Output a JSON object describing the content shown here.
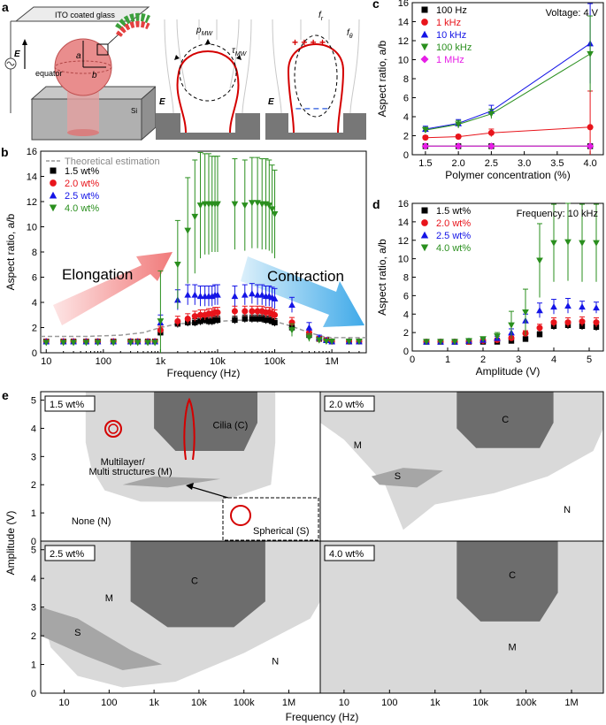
{
  "panel_a": {
    "letter": "a",
    "labels": {
      "ito": "ITO coated glass",
      "efield": "E",
      "equator": "equator",
      "a": "a",
      "b": "b",
      "si": "Si",
      "p_mw": "p",
      "p_mw_sub": "MW",
      "tau_mw": "τ",
      "tau_mw_sub": "MW",
      "f_r": "f",
      "f_r_sub": "r",
      "f_theta": "f",
      "f_theta_sub": "θ",
      "e2": "E",
      "e3": "E"
    }
  },
  "chart_data": [
    {
      "panel": "b",
      "type": "scatter",
      "xscale": "log",
      "xlabel": "Frequency (Hz)",
      "ylabel": "Aspect ratio, a/b",
      "xticks": [
        "10",
        "100",
        "1k",
        "10k",
        "100k",
        "1M"
      ],
      "yticks": [
        0,
        2,
        4,
        6,
        8,
        10,
        12,
        14,
        16
      ],
      "xlim": [
        8,
        4000000
      ],
      "ylim": [
        0,
        16
      ],
      "legend_placement": "top-left",
      "theory_label": "Theoretical estimation",
      "annotations": [
        "Elongation",
        "Contraction"
      ],
      "x": [
        10,
        20,
        30,
        50,
        80,
        150,
        300,
        400,
        600,
        800,
        1000,
        2000,
        3000,
        4000,
        5000,
        6000,
        7000,
        8000,
        9000,
        10000,
        20000,
        30000,
        40000,
        50000,
        60000,
        70000,
        80000,
        90000,
        100000,
        200000,
        400000,
        600000,
        800000,
        1000000,
        2000000,
        3000000
      ],
      "theory": {
        "x": [
          8,
          50,
          200,
          500,
          1000,
          2000,
          5000,
          10000,
          30000,
          100000,
          200000,
          400000,
          700000,
          1000000,
          4000000
        ],
        "y": [
          1.3,
          1.3,
          1.4,
          1.6,
          2.0,
          2.3,
          2.4,
          2.5,
          2.6,
          2.5,
          2.1,
          1.6,
          1.3,
          1.2,
          1.2
        ]
      },
      "series": [
        {
          "name": "1.5 wt%",
          "color": "#000000",
          "marker": "square",
          "y": [
            0.9,
            0.9,
            0.9,
            0.9,
            0.9,
            0.9,
            0.9,
            0.9,
            0.9,
            0.9,
            1.6,
            2.3,
            2.4,
            2.4,
            2.5,
            2.6,
            2.5,
            2.5,
            2.6,
            2.6,
            2.6,
            2.7,
            2.7,
            2.7,
            2.7,
            2.6,
            2.6,
            2.5,
            2.4,
            2.0,
            1.4,
            1.1,
            1.0,
            0.9,
            0.9,
            0.9
          ],
          "err": [
            0.1,
            0.1,
            0.1,
            0.1,
            0.1,
            0.1,
            0.1,
            0.1,
            0.1,
            0.1,
            0.3,
            0.3,
            0.3,
            0.3,
            0.3,
            0.3,
            0.3,
            0.3,
            0.3,
            0.3,
            0.3,
            0.3,
            0.3,
            0.3,
            0.3,
            0.3,
            0.3,
            0.3,
            0.3,
            0.3,
            0.2,
            0.1,
            0.1,
            0.1,
            0.1,
            0.1
          ]
        },
        {
          "name": "2.0 wt%",
          "color": "#e8141b",
          "marker": "circle",
          "y": [
            0.9,
            0.9,
            0.9,
            0.9,
            0.9,
            0.9,
            0.9,
            0.9,
            0.9,
            0.9,
            1.8,
            2.5,
            2.7,
            2.9,
            3.0,
            3.0,
            3.1,
            3.1,
            3.2,
            3.2,
            3.3,
            3.3,
            3.3,
            3.3,
            3.3,
            3.2,
            3.2,
            3.1,
            3.0,
            2.4,
            1.6,
            1.1,
            1.0,
            0.9,
            0.9,
            0.9
          ],
          "err": [
            0.1,
            0.1,
            0.1,
            0.1,
            0.1,
            0.1,
            0.1,
            0.1,
            0.1,
            0.1,
            0.3,
            0.4,
            0.4,
            0.4,
            0.4,
            0.4,
            0.4,
            0.4,
            0.4,
            0.4,
            0.4,
            0.4,
            0.4,
            0.4,
            0.4,
            0.4,
            0.4,
            0.4,
            0.4,
            0.4,
            0.3,
            0.2,
            0.1,
            0.1,
            0.1,
            0.1
          ]
        },
        {
          "name": "2.5 wt%",
          "color": "#1414e6",
          "marker": "triangle-up",
          "y": [
            0.9,
            0.9,
            0.9,
            0.9,
            0.9,
            0.9,
            0.9,
            0.9,
            0.9,
            0.9,
            2.4,
            4.2,
            4.6,
            4.6,
            4.5,
            4.5,
            4.5,
            4.5,
            4.6,
            4.6,
            4.5,
            4.6,
            4.7,
            4.6,
            4.6,
            4.5,
            4.5,
            4.4,
            4.3,
            3.8,
            2.0,
            1.2,
            1.0,
            0.9,
            0.9,
            0.9
          ],
          "err": [
            0.1,
            0.1,
            0.1,
            0.1,
            0.1,
            0.1,
            0.1,
            0.1,
            0.1,
            0.1,
            0.6,
            0.8,
            0.8,
            0.8,
            0.8,
            0.8,
            0.8,
            0.8,
            0.8,
            0.8,
            0.8,
            0.8,
            0.8,
            0.8,
            0.8,
            0.8,
            0.8,
            0.8,
            0.8,
            0.6,
            0.4,
            0.2,
            0.1,
            0.1,
            0.1,
            0.1
          ]
        },
        {
          "name": "4.0 wt%",
          "color": "#2a8f1e",
          "marker": "triangle-down",
          "y": [
            0.8,
            0.8,
            0.8,
            0.8,
            0.8,
            0.8,
            0.8,
            0.8,
            0.8,
            0.8,
            2.5,
            7.0,
            9.7,
            10.8,
            11.7,
            11.8,
            11.8,
            11.8,
            11.8,
            11.8,
            11.8,
            11.7,
            11.9,
            11.9,
            11.8,
            11.8,
            11.7,
            11.4,
            11.0,
            1.8,
            1.2,
            1.0,
            0.9,
            0.9,
            0.9,
            0.9
          ],
          "err": [
            0.1,
            0.1,
            0.1,
            0.1,
            0.1,
            0.1,
            0.1,
            0.1,
            0.1,
            0.1,
            4.0,
            3.5,
            4.2,
            4.5,
            4.2,
            4.0,
            4.0,
            3.8,
            3.8,
            3.8,
            3.6,
            3.6,
            3.6,
            3.6,
            3.6,
            3.6,
            3.6,
            3.5,
            3.5,
            0.5,
            0.3,
            0.2,
            0.1,
            0.1,
            0.1,
            0.1
          ]
        }
      ]
    },
    {
      "panel": "c",
      "type": "line",
      "xlabel": "Polymer concentration (%)",
      "ylabel": "Aspect ratio, a/b",
      "annotation": "Voltage: 4 V",
      "xlim": [
        1.3,
        4.2
      ],
      "ylim": [
        0,
        16
      ],
      "xticks": [
        "1.5",
        "2.0",
        "2.5",
        "3.0",
        "3.5",
        "4.0"
      ],
      "yticks": [
        0,
        2,
        4,
        6,
        8,
        10,
        12,
        14,
        16
      ],
      "legend_placement": "top-left",
      "x": [
        1.5,
        2.0,
        2.5,
        4.0
      ],
      "series": [
        {
          "name": "100 Hz",
          "color": "#000000",
          "marker": "square",
          "y": [
            0.9,
            0.9,
            0.9,
            0.9
          ],
          "err": [
            0.1,
            0.1,
            0.1,
            0.1
          ]
        },
        {
          "name": "1 kHz",
          "color": "#e8141b",
          "marker": "circle",
          "y": [
            1.8,
            1.9,
            2.3,
            2.9
          ],
          "err": [
            0.2,
            0.2,
            0.4,
            3.8
          ]
        },
        {
          "name": "10 kHz",
          "color": "#1414e6",
          "marker": "triangle-up",
          "y": [
            2.7,
            3.3,
            4.6,
            11.7
          ],
          "err": [
            0.3,
            0.4,
            0.6,
            4.2
          ]
        },
        {
          "name": "100 kHz",
          "color": "#2a8f1e",
          "marker": "triangle-down",
          "y": [
            2.6,
            3.2,
            4.3,
            10.6
          ],
          "err": [
            0.3,
            0.4,
            0.5,
            4.0
          ]
        },
        {
          "name": "1 MHz",
          "color": "#e61ee6",
          "marker": "diamond",
          "y": [
            0.9,
            0.9,
            0.9,
            0.9
          ],
          "err": [
            0.1,
            0.1,
            0.1,
            0.1
          ]
        }
      ]
    },
    {
      "panel": "d",
      "type": "line",
      "xlabel": "Amplitude  (V)",
      "ylabel": "Aspect ratio, a/b",
      "annotation": "Frequency: 10 kHz",
      "xlim": [
        0,
        5.4
      ],
      "ylim": [
        0,
        16
      ],
      "xticks": [
        "0",
        "1",
        "2",
        "3",
        "4",
        "5"
      ],
      "yticks": [
        0,
        2,
        4,
        6,
        8,
        10,
        12,
        14,
        16
      ],
      "legend_placement": "top-left",
      "x": [
        0.4,
        0.8,
        1.2,
        1.6,
        2.0,
        2.4,
        2.8,
        3.2,
        3.6,
        4.0,
        4.4,
        4.8,
        5.2
      ],
      "series": [
        {
          "name": "1.5 wt%",
          "color": "#000000",
          "marker": "square",
          "y": [
            1.0,
            1.0,
            1.0,
            1.0,
            1.0,
            1.0,
            1.1,
            1.3,
            1.8,
            2.7,
            2.8,
            2.7,
            2.6
          ],
          "err": [
            0.1,
            0.1,
            0.1,
            0.1,
            0.1,
            0.1,
            0.2,
            0.2,
            0.3,
            0.4,
            0.4,
            0.4,
            0.4
          ]
        },
        {
          "name": "2.0 wt%",
          "color": "#e8141b",
          "marker": "circle",
          "y": [
            1.0,
            1.0,
            1.0,
            1.0,
            1.1,
            1.2,
            1.4,
            1.9,
            2.5,
            3.1,
            3.1,
            3.2,
            3.1
          ],
          "err": [
            0.1,
            0.1,
            0.1,
            0.1,
            0.1,
            0.2,
            0.2,
            0.3,
            0.4,
            0.5,
            0.5,
            0.5,
            0.5
          ]
        },
        {
          "name": "2.5 wt%",
          "color": "#1414e6",
          "marker": "triangle-up",
          "y": [
            1.0,
            1.0,
            1.0,
            1.1,
            1.2,
            1.4,
            2.0,
            3.3,
            4.4,
            4.8,
            4.9,
            4.8,
            4.7
          ],
          "err": [
            0.1,
            0.1,
            0.1,
            0.1,
            0.2,
            0.2,
            0.4,
            0.7,
            0.8,
            0.8,
            0.8,
            0.6,
            0.6
          ]
        },
        {
          "name": "4.0 wt%",
          "color": "#2a8f1e",
          "marker": "triangle-down",
          "y": [
            1.0,
            1.0,
            1.0,
            1.1,
            1.3,
            1.6,
            2.8,
            4.2,
            9.8,
            11.7,
            11.8,
            11.7,
            11.7
          ],
          "err": [
            0.1,
            0.1,
            0.1,
            0.1,
            0.2,
            0.4,
            1.5,
            2.5,
            4.0,
            4.2,
            4.2,
            4.2,
            4.2
          ]
        }
      ]
    },
    {
      "panel": "e",
      "type": "heatmap",
      "xlabel": "Frequency (Hz)",
      "ylabel": "Amplitude (V)",
      "xticks": [
        "10",
        "100",
        "1k",
        "10k",
        "100k",
        "1M"
      ],
      "yticks": [
        "0",
        "1",
        "2",
        "3",
        "4",
        "5"
      ],
      "xlim": [
        3,
        5000000
      ],
      "ylim": [
        0,
        5.3
      ],
      "region_colors": {
        "N": "#ffffff",
        "M": "#d9d9d9",
        "S": "#a6a6a6",
        "C": "#6d6d6d"
      },
      "subpanels": [
        {
          "title": "1.5 wt%",
          "labels": [
            "None (N)",
            "Multilayer/",
            "Multi structures (M)",
            "Cilia (C)",
            "Spherical (S)"
          ]
        },
        {
          "title": "2.0 wt%",
          "labels": [
            "M",
            "C",
            "S",
            "N"
          ]
        },
        {
          "title": "2.5 wt%",
          "labels": [
            "M",
            "C",
            "S",
            "N"
          ]
        },
        {
          "title": "4.0 wt%",
          "labels": [
            "C",
            "M"
          ]
        }
      ]
    }
  ]
}
